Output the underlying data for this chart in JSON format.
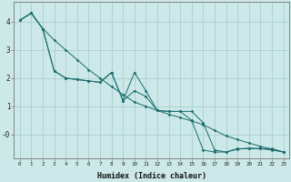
{
  "xlabel": "Humidex (Indice chaleur)",
  "ylabel": "",
  "background_color": "#cce8e8",
  "grid_color": "#aad0d0",
  "line_color": "#1a6b6b",
  "xlim": [
    -0.5,
    23.5
  ],
  "ylim": [
    -0.85,
    4.7
  ],
  "line1_x": [
    0,
    1,
    2,
    3,
    4,
    5,
    6,
    7,
    8,
    9,
    10,
    11,
    12,
    13,
    14,
    15,
    16,
    17,
    18,
    19,
    20,
    21,
    22,
    23
  ],
  "line1_y": [
    4.05,
    4.3,
    3.75,
    2.25,
    2.0,
    1.95,
    1.9,
    1.85,
    2.2,
    1.2,
    2.2,
    1.55,
    0.85,
    0.82,
    0.82,
    0.82,
    0.42,
    -0.55,
    -0.62,
    -0.52,
    -0.48,
    -0.5,
    -0.5,
    -0.62
  ],
  "line2_x": [
    0,
    1,
    2,
    3,
    4,
    5,
    6,
    7,
    8,
    9,
    10,
    11,
    12,
    13,
    14,
    15,
    16,
    17,
    18,
    19,
    20,
    21,
    22,
    23
  ],
  "line2_y": [
    4.05,
    4.3,
    3.75,
    3.35,
    3.0,
    2.65,
    2.3,
    2.0,
    1.7,
    1.42,
    1.15,
    1.0,
    0.85,
    0.72,
    0.6,
    0.48,
    0.35,
    0.15,
    -0.05,
    -0.18,
    -0.3,
    -0.42,
    -0.52,
    -0.62
  ],
  "line3_x": [
    0,
    1,
    2,
    3,
    4,
    5,
    6,
    7,
    8,
    9,
    10,
    11,
    12,
    13,
    14,
    15,
    16,
    17,
    18,
    19,
    20,
    21,
    22,
    23
  ],
  "line3_y": [
    4.05,
    4.3,
    3.75,
    2.25,
    2.0,
    1.95,
    1.9,
    1.85,
    2.2,
    1.2,
    1.55,
    1.35,
    0.85,
    0.82,
    0.82,
    0.5,
    -0.55,
    -0.62,
    -0.62,
    -0.5,
    -0.5,
    -0.5,
    -0.55,
    -0.62
  ]
}
